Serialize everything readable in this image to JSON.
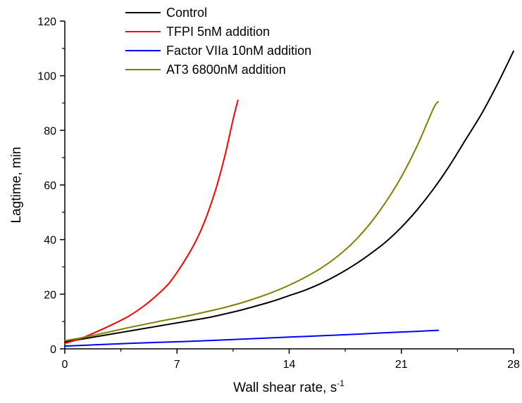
{
  "chart_data": {
    "type": "line",
    "title": "",
    "xlabel": "Wall shear rate, s",
    "xlabel_superscript": "-1",
    "ylabel": "Lagtime, min",
    "xlim": [
      0,
      28
    ],
    "ylim": [
      0,
      120
    ],
    "xticks": [
      0,
      7,
      14,
      21,
      28
    ],
    "xtick_labels": [
      "0",
      "7",
      "14",
      "21",
      "28"
    ],
    "yticks": [
      0,
      20,
      40,
      60,
      80,
      100,
      120
    ],
    "ytick_labels": [
      "0",
      "20",
      "40",
      "60",
      "80",
      "100",
      "120"
    ],
    "grid": false,
    "legend_position": "top",
    "series": [
      {
        "name": "Control",
        "color": "#000000",
        "x": [
          0,
          1,
          2,
          3,
          4,
          5,
          6,
          7,
          8,
          9,
          10,
          11,
          12,
          13,
          14,
          15,
          16,
          17,
          18,
          19,
          20,
          21,
          22,
          23,
          24,
          25,
          26,
          27,
          28
        ],
        "y": [
          2.5,
          3.5,
          4.5,
          5.5,
          6.5,
          7.5,
          8.5,
          9.5,
          10.5,
          11.5,
          12.8,
          14.2,
          15.8,
          17.5,
          19.5,
          21.5,
          24,
          27,
          30.5,
          34.5,
          39,
          44.5,
          51,
          58.5,
          67,
          76.5,
          86,
          97,
          109
        ]
      },
      {
        "name": "TFPI 5nM addition",
        "color": "#ff0000",
        "x": [
          0,
          1,
          2,
          3,
          4,
          5,
          6,
          6.5,
          7,
          7.5,
          8,
          8.5,
          9,
          9.5,
          10,
          10.5,
          10.8
        ],
        "y": [
          2.0,
          3.8,
          6.3,
          9.0,
          12.0,
          16.0,
          21.0,
          24.0,
          28.0,
          32.5,
          37.5,
          43.5,
          51.0,
          60.0,
          71.0,
          84.0,
          91.0
        ]
      },
      {
        "name": "Factor VIIa 10nM addition",
        "color": "#0000ff",
        "x": [
          0,
          2,
          4,
          6,
          8,
          10,
          12,
          14,
          16,
          18,
          20,
          22,
          23.3
        ],
        "y": [
          1.0,
          1.5,
          2.0,
          2.4,
          2.8,
          3.3,
          3.8,
          4.3,
          4.8,
          5.3,
          5.9,
          6.4,
          6.8
        ]
      },
      {
        "name": "AT3 6800nM addition",
        "color": "#808000",
        "x": [
          0,
          1,
          2,
          3,
          4,
          5,
          6,
          7,
          8,
          9,
          10,
          11,
          12,
          13,
          14,
          15,
          16,
          17,
          18,
          19,
          20,
          21,
          22,
          23,
          23.3
        ],
        "y": [
          3.0,
          4.0,
          5.2,
          6.5,
          7.8,
          9.0,
          10.2,
          11.3,
          12.5,
          13.8,
          15.2,
          16.8,
          18.7,
          20.8,
          23.3,
          26.2,
          29.6,
          33.8,
          39.0,
          45.5,
          53.5,
          63.0,
          74.5,
          88.0,
          90.5
        ]
      }
    ]
  }
}
